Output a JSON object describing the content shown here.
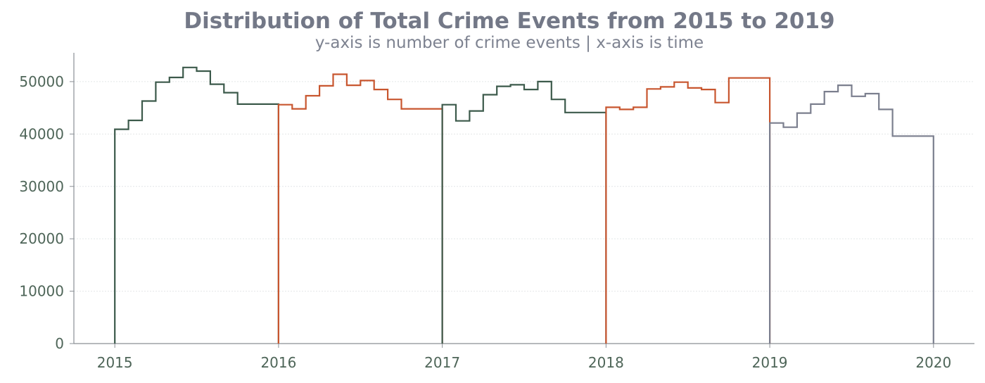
{
  "chart_data": {
    "type": "step-histogram",
    "title": "Distribution of Total Crime Events from 2015 to 2019",
    "subtitle": "y-axis is number of crime events | x-axis is time",
    "xlabel": "",
    "ylabel": "",
    "xlim": [
      2014.75,
      2020.25
    ],
    "ylim": [
      0,
      55500
    ],
    "xticks": [
      "2015",
      "2016",
      "2017",
      "2018",
      "2019",
      "2020"
    ],
    "yticks": [
      "0",
      "10000",
      "20000",
      "30000",
      "40000",
      "50000"
    ],
    "grid": "horizontal",
    "bins_per_year": 12,
    "series": [
      {
        "year": 2015,
        "color": "#3c5a4b",
        "values": [
          40900,
          42600,
          46300,
          49900,
          50800,
          52700,
          52000,
          49500,
          47900,
          45700,
          45700,
          45700
        ]
      },
      {
        "year": 2016,
        "color": "#c8562f",
        "values": [
          45600,
          44800,
          47300,
          49200,
          51400,
          49300,
          50200,
          48500,
          46600,
          44800,
          44800,
          44800
        ]
      },
      {
        "year": 2017,
        "color": "#3c5a4b",
        "values": [
          45600,
          42500,
          44400,
          47500,
          49100,
          49400,
          48500,
          50000,
          46600,
          44100,
          44100,
          44100
        ]
      },
      {
        "year": 2018,
        "color": "#c8562f",
        "values": [
          45100,
          44700,
          45100,
          48600,
          49000,
          49900,
          48800,
          48500,
          46000,
          50700,
          50700,
          50700
        ]
      },
      {
        "year": 2019,
        "color": "#7b7f8e",
        "values": [
          42100,
          41300,
          44000,
          45700,
          48100,
          49300,
          47200,
          47700,
          44700,
          39600,
          39600,
          39600
        ]
      }
    ]
  }
}
